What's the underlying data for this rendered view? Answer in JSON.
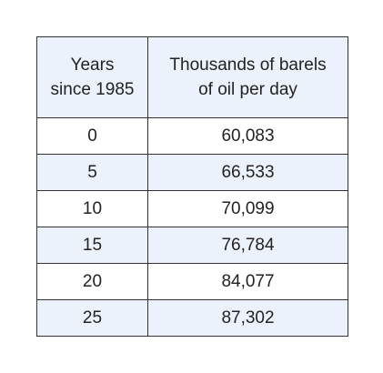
{
  "table": {
    "headers": [
      "Years since 1985",
      "Thousands of barels of oil per day"
    ],
    "header_lines": [
      [
        "Years",
        "since 1985"
      ],
      [
        "Thousands of barels",
        "of oil per day"
      ]
    ],
    "rows": [
      [
        "0",
        "60,083"
      ],
      [
        "5",
        "66,533"
      ],
      [
        "10",
        "70,099"
      ],
      [
        "15",
        "76,784"
      ],
      [
        "20",
        "84,077"
      ],
      [
        "25",
        "87,302"
      ]
    ],
    "colors": {
      "header_bg": "#ebf2fc",
      "alt_row_bg": "#ebf2fc",
      "border": "#333333"
    }
  }
}
